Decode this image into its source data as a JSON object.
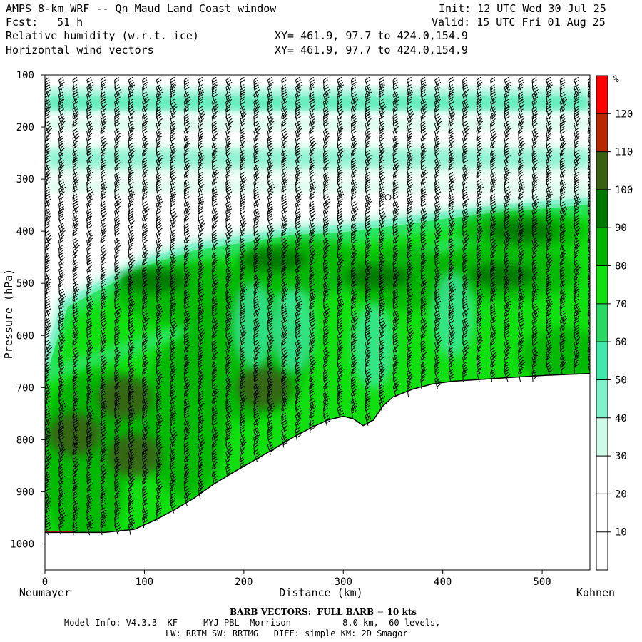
{
  "header": {
    "model": "AMPS 8-km WRF -- Qn Maud Land Coast window",
    "fcst_label": "Fcst:",
    "fcst_value": "51 h",
    "field1": "Relative humidity (w.r.t. ice)",
    "field2": "Horizontal wind vectors",
    "xy1": "XY= 461.9, 97.7 to 424.0,154.9",
    "xy2": "XY= 461.9, 97.7 to 424.0,154.9",
    "init": "Init: 12 UTC Wed 30 Jul 25",
    "valid": "Valid: 15 UTC Fri 01 Aug 25"
  },
  "footer": {
    "barb_note": "BARB VECTORS:  FULL BARB = 10 kts",
    "model_info_1": "Model Info: V4.3.3  KF     MYJ PBL  Morrison          8.0 km,  60 levels,",
    "model_info_2": "LW: RRTM SW: RRTMG   DIFF: simple KM: 2D Smagor"
  },
  "chart_data": {
    "type": "heatmap",
    "description_field": "Relative humidity cross-section with wind barbs",
    "xlabel": "Distance (km)",
    "ylabel": "Pressure (hPa)",
    "x_left_label": "Neumayer",
    "x_right_label": "Kohnen",
    "xlim": [
      0,
      548
    ],
    "ylim": [
      1050,
      100
    ],
    "x_ticks": [
      0,
      100,
      200,
      300,
      400,
      500
    ],
    "y_ticks": [
      100,
      200,
      300,
      400,
      500,
      600,
      700,
      800,
      900,
      1000
    ],
    "colorbar": {
      "unit": "%",
      "levels": [
        10,
        20,
        30,
        40,
        50,
        60,
        70,
        80,
        90,
        100,
        110,
        120
      ],
      "colors": [
        "#ffffff",
        "#ffffff",
        "#ffffff",
        "#ccfbe8",
        "#7ff2cc",
        "#40e8aa",
        "#29d860",
        "#10e010",
        "#00b400",
        "#007800",
        "#3a5f12",
        "#b82800",
        "#ff0000"
      ]
    },
    "terrain": [
      {
        "x": 0,
        "p": 978
      },
      {
        "x": 30,
        "p": 978
      },
      {
        "x": 60,
        "p": 978
      },
      {
        "x": 90,
        "p": 972
      },
      {
        "x": 110,
        "p": 955
      },
      {
        "x": 130,
        "p": 935
      },
      {
        "x": 150,
        "p": 912
      },
      {
        "x": 170,
        "p": 885
      },
      {
        "x": 190,
        "p": 862
      },
      {
        "x": 210,
        "p": 840
      },
      {
        "x": 230,
        "p": 818
      },
      {
        "x": 250,
        "p": 795
      },
      {
        "x": 270,
        "p": 775
      },
      {
        "x": 285,
        "p": 762
      },
      {
        "x": 300,
        "p": 755
      },
      {
        "x": 310,
        "p": 760
      },
      {
        "x": 320,
        "p": 773
      },
      {
        "x": 330,
        "p": 763
      },
      {
        "x": 340,
        "p": 735
      },
      {
        "x": 350,
        "p": 718
      },
      {
        "x": 370,
        "p": 703
      },
      {
        "x": 390,
        "p": 693
      },
      {
        "x": 410,
        "p": 688
      },
      {
        "x": 450,
        "p": 683
      },
      {
        "x": 500,
        "p": 677
      },
      {
        "x": 548,
        "p": 673
      }
    ],
    "moist_layer_top": [
      {
        "x": 0,
        "p": 660
      },
      {
        "x": 20,
        "p": 540
      },
      {
        "x": 60,
        "p": 500
      },
      {
        "x": 100,
        "p": 460
      },
      {
        "x": 150,
        "p": 430
      },
      {
        "x": 200,
        "p": 415
      },
      {
        "x": 250,
        "p": 400
      },
      {
        "x": 300,
        "p": 395
      },
      {
        "x": 350,
        "p": 383
      },
      {
        "x": 400,
        "p": 370
      },
      {
        "x": 450,
        "p": 358
      },
      {
        "x": 500,
        "p": 350
      },
      {
        "x": 548,
        "p": 342
      }
    ],
    "maxima_100_110": [
      {
        "x": 110,
        "p": 495
      },
      {
        "x": 230,
        "p": 455
      },
      {
        "x": 335,
        "p": 488
      },
      {
        "x": 460,
        "p": 485
      },
      {
        "x": 480,
        "p": 400
      }
    ],
    "circle_marker": {
      "x": 345,
      "p": 335
    }
  }
}
